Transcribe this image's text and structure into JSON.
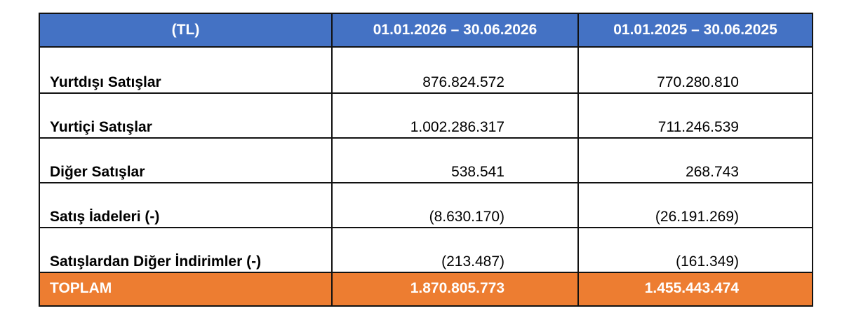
{
  "table": {
    "header": [
      "(TL)",
      "01.01.2026 – 30.06.2026",
      "01.01.2025 – 30.06.2025"
    ],
    "rows": [
      [
        "Yurtdışı Satışlar",
        "876.824.572",
        "770.280.810"
      ],
      [
        "Yurtiçi Satışlar",
        "1.002.286.317",
        "711.246.539"
      ],
      [
        "Diğer Satışlar",
        "538.541",
        "268.743"
      ],
      [
        "Satış İadeleri (-)",
        "(8.630.170)",
        "(26.191.269)"
      ],
      [
        "Satışlardan Diğer İndirimler (-)",
        "(213.487)",
        "(161.349)"
      ]
    ],
    "total": [
      "TOPLAM",
      "1.870.805.773",
      "1.455.443.474"
    ]
  }
}
